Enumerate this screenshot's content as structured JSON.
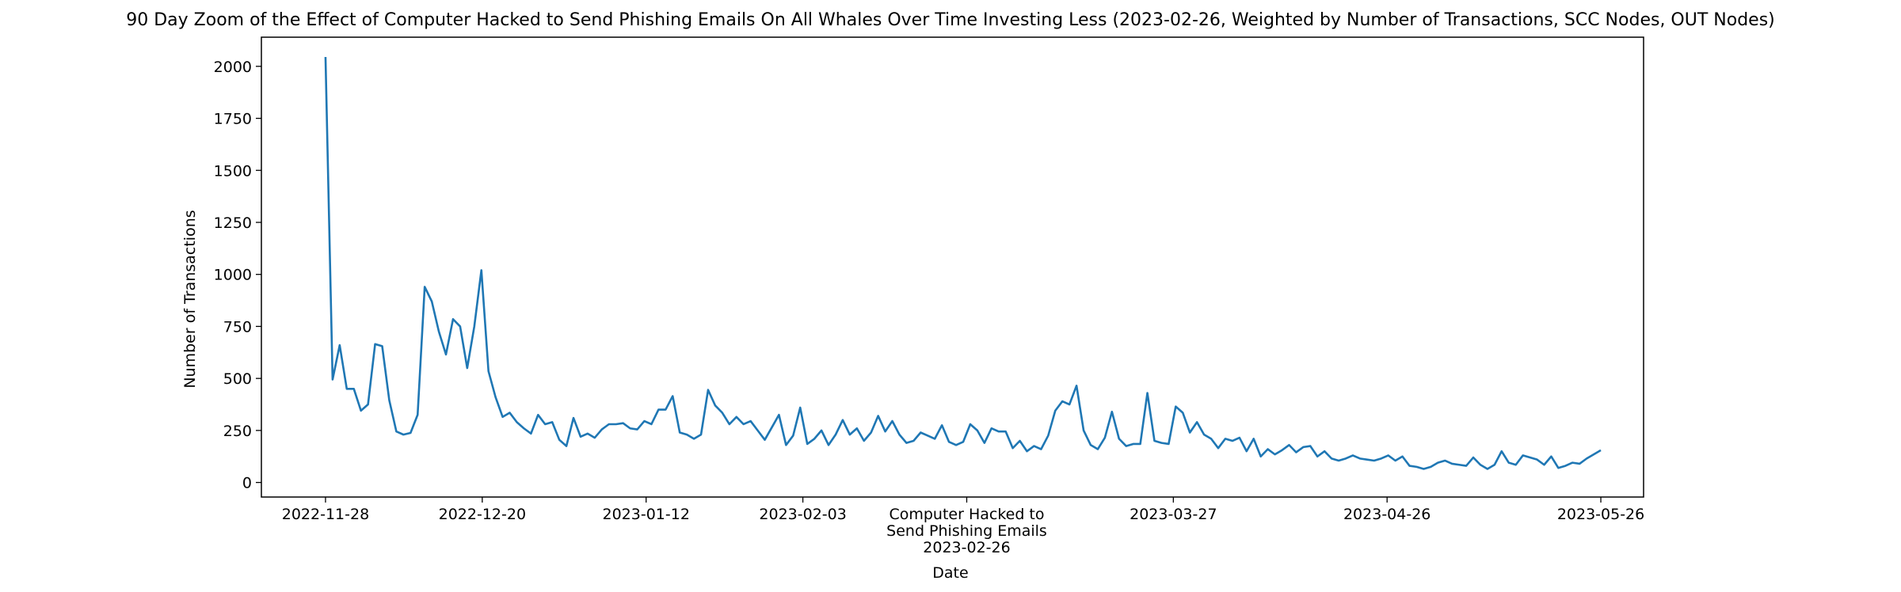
{
  "chart_data": {
    "type": "line",
    "title": "90 Day Zoom of the Effect of Computer Hacked to Send Phishing Emails On All Whales Over Time Investing Less (2023-02-26, Weighted by Number of Transactions, SCC Nodes, OUT Nodes)",
    "xlabel": "Date",
    "ylabel": "Number of Transactions",
    "x_start": "2022-11-28",
    "x_end": "2023-05-26",
    "xlim": [
      "2022-11-19",
      "2023-06-01"
    ],
    "ylim": [
      -70,
      2140
    ],
    "yticks": [
      0,
      250,
      500,
      750,
      1000,
      1250,
      1500,
      1750,
      2000
    ],
    "xticks": [
      {
        "label": "2022-11-28",
        "date": "2022-11-28"
      },
      {
        "label": "2022-12-20",
        "date": "2022-12-20"
      },
      {
        "label": "2023-01-12",
        "date": "2023-01-12"
      },
      {
        "label": "2023-02-03",
        "date": "2023-02-03"
      },
      {
        "label": "Computer Hacked to\nSend Phishing Emails\n2023-02-26",
        "date": "2023-02-26"
      },
      {
        "label": "2023-03-27",
        "date": "2023-03-27"
      },
      {
        "label": "2023-04-26",
        "date": "2023-04-26"
      },
      {
        "label": "2023-05-26",
        "date": "2023-05-26"
      }
    ],
    "grid": false,
    "line_color": "#1f77b4",
    "series": [
      {
        "values": [
          2045,
          495,
          660,
          450,
          450,
          345,
          375,
          665,
          655,
          395,
          245,
          230,
          238,
          325,
          940,
          870,
          725,
          615,
          785,
          750,
          550,
          750,
          1020,
          535,
          410,
          315,
          335,
          290,
          260,
          235,
          325,
          280,
          290,
          205,
          175,
          310,
          220,
          235,
          215,
          255,
          280,
          280,
          285,
          260,
          255,
          295,
          280,
          350,
          350,
          415,
          240,
          230,
          210,
          230,
          445,
          370,
          335,
          280,
          315,
          280,
          295,
          250,
          205,
          265,
          325,
          180,
          225,
          360,
          185,
          210,
          250,
          180,
          230,
          300,
          230,
          260,
          200,
          240,
          320,
          245,
          295,
          230,
          190,
          200,
          240,
          225,
          210,
          275,
          195,
          180,
          195,
          280,
          250,
          190,
          260,
          245,
          245,
          165,
          200,
          150,
          175,
          160,
          225,
          345,
          390,
          375,
          465,
          250,
          180,
          160,
          215,
          340,
          210,
          175,
          185,
          185,
          430,
          200,
          190,
          185,
          365,
          335,
          240,
          290,
          230,
          210,
          165,
          210,
          200,
          215,
          150,
          210,
          125,
          160,
          135,
          155,
          180,
          145,
          170,
          175,
          125,
          150,
          115,
          105,
          115,
          130,
          115,
          110,
          105,
          115,
          130,
          105,
          125,
          80,
          75,
          65,
          75,
          95,
          105,
          90,
          85,
          80,
          120,
          85,
          65,
          85,
          150,
          95,
          85,
          130,
          120,
          110,
          85,
          125,
          70,
          80,
          95,
          90,
          115,
          135,
          155
        ]
      }
    ]
  }
}
